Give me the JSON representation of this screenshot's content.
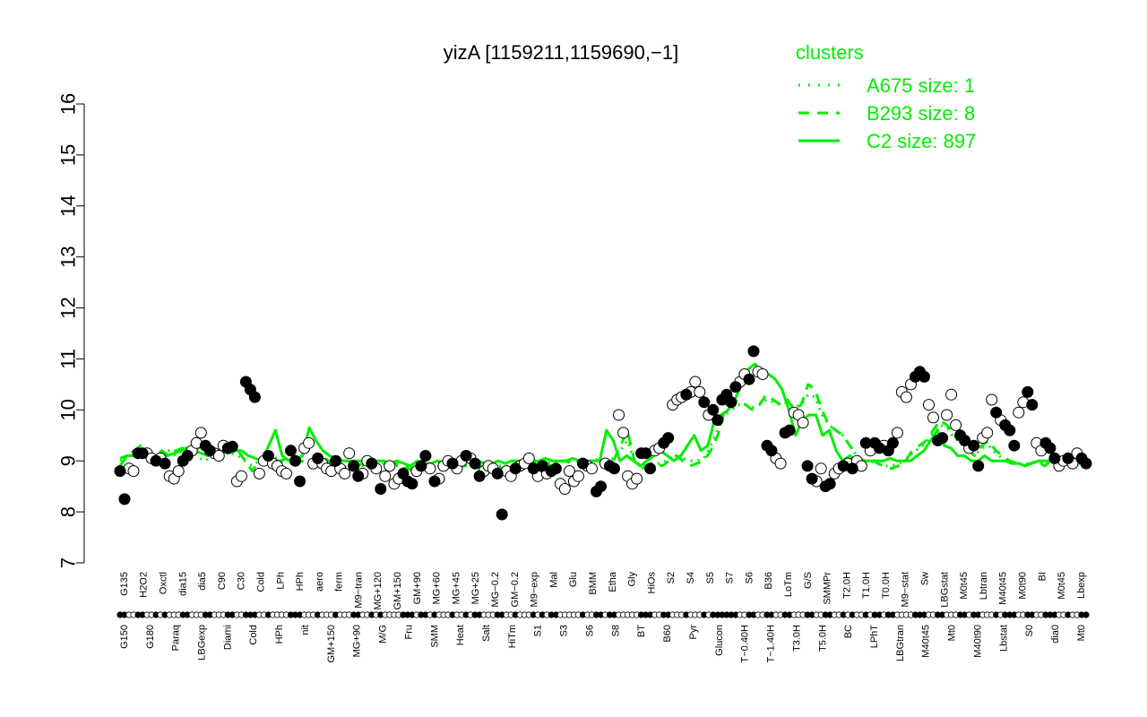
{
  "chart_data": {
    "type": "line",
    "title": "yizA [1159211,1159690,−1]",
    "xlabel": "",
    "ylabel": "",
    "ylim": [
      7,
      16
    ],
    "yticks": [
      7,
      8,
      9,
      10,
      11,
      12,
      13,
      14,
      15,
      16
    ],
    "grid": false,
    "legend": {
      "title": "clusters",
      "placement": "top-right",
      "color": "#00ee00",
      "entries": [
        {
          "label": "A675 size: 1",
          "style": "dotted"
        },
        {
          "label": "B293 size: 8",
          "style": "dashed"
        },
        {
          "label": "C2 size: 897",
          "style": "solid"
        }
      ]
    },
    "x_labels_top": [
      "G135",
      "H2O2",
      "Oxctl",
      "dia15",
      "dia5",
      "C90",
      "C30",
      "Cold",
      "LPh",
      "HPh",
      "aero",
      "ferm",
      "M9−tran",
      "MG+120",
      "GM+150",
      "GM+90",
      "MG+60",
      "MG+45",
      "MG+25",
      "MG−0.2",
      "GM−0.2",
      "M9−exp",
      "Mal",
      "Glu",
      "BMM",
      "Etha",
      "Gly",
      "HiOs",
      "S2",
      "S4",
      "S5",
      "S7",
      "S6",
      "B36",
      "LoTm",
      "G/S",
      "SMMPr",
      "T2.0H",
      "T1.0H",
      "T0.0H",
      "M9−stat",
      "Sw",
      "LBGstat",
      "M0t45",
      "Lbtran",
      "M40t45",
      "M0t90",
      "BI",
      "M0t45",
      "Lbexp"
    ],
    "x_labels_bottom": [
      "G150",
      "G180",
      "Paraq",
      "LBGexp",
      "Diami",
      "Cold",
      "HPh",
      "nit",
      "GM+150",
      "MG+90",
      "M/G",
      "Fru",
      "SMM",
      "Heat",
      "Salt",
      "HiTm",
      "S1",
      "S3",
      "S6",
      "S8",
      "BT",
      "B60",
      "Pyr",
      "Glucon",
      "T−0.40H",
      "T−1.40H",
      "T3.0H",
      "T5.0H",
      "BC",
      "LPhT",
      "LBGtran",
      "M40t45",
      "Mt0",
      "M40t90",
      "Lbstat",
      "S0",
      "dia0",
      "Mt0"
    ],
    "series": [
      {
        "style": "solid",
        "color": "#00ee00",
        "values": [
          9.05,
          9.1,
          9.1,
          9.15,
          9.15,
          9.1,
          9.05,
          9.1,
          9.15,
          9.2,
          9.25,
          9.2,
          9.15,
          9.1,
          9.15,
          9.2,
          9.15,
          9.2,
          9.2,
          9.1,
          9.05,
          9.0,
          9.3,
          9.6,
          9.1,
          9.0,
          9.0,
          9.1,
          9.65,
          9.4,
          9.2,
          9.1,
          9.05,
          9.0,
          9.0,
          9.0,
          9.0,
          8.95,
          9.0,
          9.0,
          8.95,
          9.0,
          8.95,
          8.9,
          9.0,
          8.95,
          8.95,
          9.0,
          8.95,
          8.95,
          8.95,
          9.0,
          8.95,
          9.0,
          8.95,
          8.95,
          9.0,
          8.95,
          9.0,
          9.0,
          9.0,
          9.0,
          9.0,
          9.05,
          9.0,
          9.0,
          9.0,
          9.05,
          9.0,
          9.0,
          9.0,
          9.0,
          9.6,
          9.4,
          9.0,
          9.1,
          9.0,
          8.9,
          9.0,
          9.1,
          9.2,
          9.1,
          9.0,
          9.1,
          9.3,
          9.5,
          9.2,
          9.3,
          9.8,
          9.9,
          10.0,
          10.2,
          10.5,
          10.8,
          10.9,
          10.7,
          10.7,
          10.6,
          10.4,
          10.0,
          9.5,
          9.8,
          9.9,
          9.9,
          9.5,
          9.6,
          9.2,
          9.0,
          9.1,
          9.0,
          9.0,
          9.0,
          9.0,
          9.0,
          9.05,
          9.0,
          9.0,
          9.0,
          9.1,
          9.2,
          9.4,
          9.6,
          9.3,
          9.25,
          9.1,
          9.1,
          9.0,
          9.0,
          9.1,
          9.0,
          9.0,
          9.0,
          8.95,
          8.95,
          8.9,
          8.95,
          9.0,
          9.0,
          9.0,
          9.0,
          9.0,
          8.95,
          8.95,
          8.95
        ]
      },
      {
        "style": "dashed",
        "color": "#00ee00",
        "values": [
          8.9,
          9.1,
          9.2,
          9.3,
          9.1,
          9.05,
          9.2,
          9.1,
          9.2,
          9.25,
          9.2,
          9.3,
          9.15,
          9.1,
          9.15,
          9.2,
          9.3,
          9.2,
          9.0,
          8.8,
          9.0,
          9.1,
          9.0,
          9.0,
          9.05,
          9.1,
          9.0,
          9.0,
          8.95,
          9.1,
          9.0,
          8.8,
          8.9,
          8.85,
          8.9,
          8.95,
          8.85,
          8.9,
          8.95,
          8.9,
          8.95,
          8.9,
          8.8,
          8.85,
          8.9,
          8.85,
          8.9,
          8.95,
          8.85,
          8.9,
          8.9,
          8.85,
          8.9,
          8.85,
          8.8,
          8.9,
          8.85,
          8.9,
          8.95,
          9.0,
          8.95,
          9.0,
          8.9,
          9.0,
          9.0,
          8.95,
          8.95,
          9.0,
          9.05,
          9.0,
          9.0,
          9.0,
          9.3,
          9.6,
          9.0,
          8.85,
          8.9,
          8.95,
          8.9,
          9.0,
          9.1,
          9.0,
          8.9,
          8.95,
          9.0,
          9.2,
          9.5,
          10.0,
          10.1,
          10.2,
          10.1,
          10.0,
          10.1,
          10.3,
          10.2,
          10.1,
          10.2,
          10.0,
          10.1,
          10.5,
          10.4,
          10.0,
          9.7,
          9.6,
          9.5,
          9.3,
          9.1,
          9.0,
          9.05,
          8.95,
          8.9,
          8.85,
          8.9,
          9.0,
          9.2,
          9.3,
          9.4,
          9.6,
          9.8,
          9.7,
          9.5,
          9.4,
          9.2,
          9.1,
          9.3,
          9.4,
          9.2,
          9.1,
          9.0,
          8.95,
          8.9,
          8.95,
          9.0,
          8.9,
          9.0,
          9.0,
          8.95,
          9.0,
          9.0,
          9.0
        ]
      },
      {
        "style": "dotted",
        "color": "#00ee00",
        "values": [
          9.0,
          9.1,
          9.2,
          9.15,
          9.1,
          9.0,
          9.1,
          9.2,
          9.1,
          9.2,
          9.3,
          9.1,
          9.0,
          9.05,
          9.1,
          9.2,
          9.15,
          9.1,
          9.0,
          8.9,
          9.0,
          9.05,
          9.1,
          9.0,
          9.0,
          9.05,
          9.0,
          8.95,
          9.0,
          9.05,
          8.95,
          8.9,
          8.9,
          8.9,
          8.95,
          8.9,
          8.85,
          8.9,
          8.95,
          8.9,
          8.9,
          8.85,
          8.85,
          8.9,
          8.9,
          8.85,
          8.9,
          8.95,
          8.9,
          8.9,
          8.95,
          8.9,
          8.9,
          8.85,
          8.9,
          8.9,
          8.9,
          8.95,
          8.95,
          9.0,
          9.0,
          9.0,
          8.95,
          8.95,
          9.0,
          9.0,
          9.0,
          9.0,
          9.0,
          9.0,
          9.0,
          9.05,
          9.2,
          9.4,
          9.0,
          8.9,
          8.95,
          8.95,
          8.95,
          9.05,
          9.1,
          9.05,
          9.0,
          9.0,
          9.05,
          9.3,
          9.6,
          9.9,
          10.0,
          10.1,
          10.1,
          10.05,
          10.1,
          10.2,
          10.15,
          10.1,
          10.15,
          10.05,
          10.1,
          10.3,
          10.25,
          9.9,
          9.7,
          9.6,
          9.5,
          9.3,
          9.1,
          9.0,
          9.0,
          8.95,
          8.9,
          8.9,
          8.95,
          9.0,
          9.15,
          9.25,
          9.35,
          9.55,
          9.7,
          9.65,
          9.45,
          9.35,
          9.2,
          9.1,
          9.25,
          9.3,
          9.15,
          9.05,
          9.0,
          8.95,
          8.95,
          8.95,
          9.0,
          8.95,
          9.0,
          9.0,
          8.95,
          9.0,
          9.0,
          8.95
        ]
      }
    ],
    "points": [
      {
        "y": 8.8,
        "f": 1
      },
      {
        "y": 8.25,
        "f": 1
      },
      {
        "y": 8.85,
        "f": 0
      },
      {
        "y": 8.8,
        "f": 0
      },
      {
        "y": 9.15,
        "f": 1
      },
      {
        "y": 9.15,
        "f": 1
      },
      {
        "y": 9.15,
        "f": 0
      },
      {
        "y": 9.05,
        "f": 0
      },
      {
        "y": 9.0,
        "f": 1
      },
      {
        "y": 9.05,
        "f": 0
      },
      {
        "y": 8.95,
        "f": 1
      },
      {
        "y": 8.7,
        "f": 0
      },
      {
        "y": 8.65,
        "f": 0
      },
      {
        "y": 8.8,
        "f": 0
      },
      {
        "y": 9.0,
        "f": 1
      },
      {
        "y": 9.1,
        "f": 1
      },
      {
        "y": 9.2,
        "f": 0
      },
      {
        "y": 9.35,
        "f": 0
      },
      {
        "y": 9.55,
        "f": 0
      },
      {
        "y": 9.3,
        "f": 1
      },
      {
        "y": 9.2,
        "f": 1
      },
      {
        "y": 9.15,
        "f": 0
      },
      {
        "y": 9.1,
        "f": 0
      },
      {
        "y": 9.3,
        "f": 0
      },
      {
        "y": 9.25,
        "f": 1
      },
      {
        "y": 9.28,
        "f": 1
      },
      {
        "y": 8.6,
        "f": 0
      },
      {
        "y": 8.7,
        "f": 0
      },
      {
        "y": 10.55,
        "f": 1
      },
      {
        "y": 10.4,
        "f": 1
      },
      {
        "y": 10.25,
        "f": 1
      },
      {
        "y": 8.75,
        "f": 0
      },
      {
        "y": 9.0,
        "f": 0
      },
      {
        "y": 9.1,
        "f": 1
      },
      {
        "y": 8.95,
        "f": 0
      },
      {
        "y": 8.9,
        "f": 0
      },
      {
        "y": 8.8,
        "f": 0
      },
      {
        "y": 8.75,
        "f": 0
      },
      {
        "y": 9.2,
        "f": 1
      },
      {
        "y": 9.0,
        "f": 1
      },
      {
        "y": 8.6,
        "f": 1
      },
      {
        "y": 9.25,
        "f": 0
      },
      {
        "y": 9.35,
        "f": 0
      },
      {
        "y": 8.95,
        "f": 0
      },
      {
        "y": 9.05,
        "f": 1
      },
      {
        "y": 8.95,
        "f": 0
      },
      {
        "y": 8.85,
        "f": 0
      },
      {
        "y": 8.8,
        "f": 0
      },
      {
        "y": 9.0,
        "f": 1
      },
      {
        "y": 8.85,
        "f": 0
      },
      {
        "y": 8.75,
        "f": 0
      },
      {
        "y": 9.15,
        "f": 0
      },
      {
        "y": 8.9,
        "f": 1
      },
      {
        "y": 8.7,
        "f": 1
      },
      {
        "y": 8.75,
        "f": 0
      },
      {
        "y": 9.0,
        "f": 0
      },
      {
        "y": 8.95,
        "f": 1
      },
      {
        "y": 8.85,
        "f": 0
      },
      {
        "y": 8.45,
        "f": 1
      },
      {
        "y": 8.7,
        "f": 0
      },
      {
        "y": 8.9,
        "f": 0
      },
      {
        "y": 8.55,
        "f": 0
      },
      {
        "y": 8.65,
        "f": 0
      },
      {
        "y": 8.75,
        "f": 1
      },
      {
        "y": 8.6,
        "f": 1
      },
      {
        "y": 8.55,
        "f": 1
      },
      {
        "y": 8.8,
        "f": 0
      },
      {
        "y": 8.9,
        "f": 1
      },
      {
        "y": 9.1,
        "f": 1
      },
      {
        "y": 8.85,
        "f": 0
      },
      {
        "y": 8.6,
        "f": 1
      },
      {
        "y": 8.65,
        "f": 0
      },
      {
        "y": 8.9,
        "f": 0
      },
      {
        "y": 9.0,
        "f": 0
      },
      {
        "y": 8.95,
        "f": 1
      },
      {
        "y": 8.85,
        "f": 0
      },
      {
        "y": 9.0,
        "f": 0
      },
      {
        "y": 9.1,
        "f": 1
      },
      {
        "y": 9.05,
        "f": 0
      },
      {
        "y": 8.95,
        "f": 1
      },
      {
        "y": 8.7,
        "f": 1
      },
      {
        "y": 8.8,
        "f": 0
      },
      {
        "y": 8.9,
        "f": 0
      },
      {
        "y": 8.85,
        "f": 0
      },
      {
        "y": 8.75,
        "f": 1
      },
      {
        "y": 7.95,
        "f": 1
      },
      {
        "y": 8.8,
        "f": 0
      },
      {
        "y": 8.7,
        "f": 0
      },
      {
        "y": 8.85,
        "f": 1
      },
      {
        "y": 8.9,
        "f": 0
      },
      {
        "y": 8.95,
        "f": 0
      },
      {
        "y": 9.05,
        "f": 0
      },
      {
        "y": 8.85,
        "f": 1
      },
      {
        "y": 8.7,
        "f": 0
      },
      {
        "y": 8.9,
        "f": 1
      },
      {
        "y": 8.75,
        "f": 0
      },
      {
        "y": 8.8,
        "f": 1
      },
      {
        "y": 8.85,
        "f": 1
      },
      {
        "y": 8.55,
        "f": 0
      },
      {
        "y": 8.45,
        "f": 0
      },
      {
        "y": 8.8,
        "f": 0
      },
      {
        "y": 8.6,
        "f": 0
      },
      {
        "y": 8.7,
        "f": 0
      },
      {
        "y": 8.95,
        "f": 1
      },
      {
        "y": 8.9,
        "f": 0
      },
      {
        "y": 8.85,
        "f": 0
      },
      {
        "y": 8.4,
        "f": 1
      },
      {
        "y": 8.5,
        "f": 1
      },
      {
        "y": 8.95,
        "f": 0
      },
      {
        "y": 8.9,
        "f": 1
      },
      {
        "y": 8.85,
        "f": 1
      },
      {
        "y": 9.9,
        "f": 0
      },
      {
        "y": 9.55,
        "f": 0
      },
      {
        "y": 8.7,
        "f": 0
      },
      {
        "y": 8.55,
        "f": 0
      },
      {
        "y": 8.65,
        "f": 0
      },
      {
        "y": 9.15,
        "f": 1
      },
      {
        "y": 9.15,
        "f": 1
      },
      {
        "y": 8.85,
        "f": 1
      },
      {
        "y": 9.2,
        "f": 0
      },
      {
        "y": 9.25,
        "f": 0
      },
      {
        "y": 9.35,
        "f": 1
      },
      {
        "y": 9.45,
        "f": 1
      },
      {
        "y": 10.1,
        "f": 0
      },
      {
        "y": 10.2,
        "f": 0
      },
      {
        "y": 10.25,
        "f": 0
      },
      {
        "y": 10.3,
        "f": 1
      },
      {
        "y": 10.35,
        "f": 0
      },
      {
        "y": 10.55,
        "f": 0
      },
      {
        "y": 10.35,
        "f": 0
      },
      {
        "y": 10.15,
        "f": 1
      },
      {
        "y": 9.9,
        "f": 0
      },
      {
        "y": 10.0,
        "f": 1
      },
      {
        "y": 9.8,
        "f": 1
      },
      {
        "y": 10.2,
        "f": 1
      },
      {
        "y": 10.3,
        "f": 1
      },
      {
        "y": 10.15,
        "f": 1
      },
      {
        "y": 10.45,
        "f": 1
      },
      {
        "y": 10.55,
        "f": 0
      },
      {
        "y": 10.7,
        "f": 0
      },
      {
        "y": 10.6,
        "f": 1
      },
      {
        "y": 11.15,
        "f": 1
      },
      {
        "y": 10.75,
        "f": 0
      },
      {
        "y": 10.7,
        "f": 0
      },
      {
        "y": 9.3,
        "f": 1
      },
      {
        "y": 9.2,
        "f": 1
      },
      {
        "y": 9.05,
        "f": 0
      },
      {
        "y": 8.95,
        "f": 0
      },
      {
        "y": 9.55,
        "f": 1
      },
      {
        "y": 9.6,
        "f": 1
      },
      {
        "y": 9.95,
        "f": 0
      },
      {
        "y": 9.9,
        "f": 0
      },
      {
        "y": 9.75,
        "f": 0
      },
      {
        "y": 8.9,
        "f": 1
      },
      {
        "y": 8.65,
        "f": 1
      },
      {
        "y": 8.6,
        "f": 0
      },
      {
        "y": 8.85,
        "f": 0
      },
      {
        "y": 8.5,
        "f": 1
      },
      {
        "y": 8.55,
        "f": 1
      },
      {
        "y": 8.75,
        "f": 0
      },
      {
        "y": 8.85,
        "f": 0
      },
      {
        "y": 8.9,
        "f": 1
      },
      {
        "y": 8.95,
        "f": 0
      },
      {
        "y": 8.85,
        "f": 1
      },
      {
        "y": 9.0,
        "f": 0
      },
      {
        "y": 8.9,
        "f": 0
      },
      {
        "y": 9.35,
        "f": 1
      },
      {
        "y": 9.2,
        "f": 0
      },
      {
        "y": 9.35,
        "f": 1
      },
      {
        "y": 9.25,
        "f": 1
      },
      {
        "y": 9.3,
        "f": 0
      },
      {
        "y": 9.2,
        "f": 1
      },
      {
        "y": 9.35,
        "f": 1
      },
      {
        "y": 9.55,
        "f": 0
      },
      {
        "y": 10.35,
        "f": 0
      },
      {
        "y": 10.25,
        "f": 0
      },
      {
        "y": 10.5,
        "f": 0
      },
      {
        "y": 10.65,
        "f": 1
      },
      {
        "y": 10.75,
        "f": 1
      },
      {
        "y": 10.65,
        "f": 1
      },
      {
        "y": 10.1,
        "f": 0
      },
      {
        "y": 9.85,
        "f": 0
      },
      {
        "y": 9.4,
        "f": 1
      },
      {
        "y": 9.45,
        "f": 1
      },
      {
        "y": 9.9,
        "f": 0
      },
      {
        "y": 10.3,
        "f": 0
      },
      {
        "y": 9.7,
        "f": 0
      },
      {
        "y": 9.5,
        "f": 1
      },
      {
        "y": 9.4,
        "f": 1
      },
      {
        "y": 9.25,
        "f": 0
      },
      {
        "y": 9.3,
        "f": 1
      },
      {
        "y": 8.9,
        "f": 1
      },
      {
        "y": 9.45,
        "f": 0
      },
      {
        "y": 9.55,
        "f": 0
      },
      {
        "y": 10.2,
        "f": 0
      },
      {
        "y": 9.95,
        "f": 1
      },
      {
        "y": 9.8,
        "f": 0
      },
      {
        "y": 9.7,
        "f": 1
      },
      {
        "y": 9.6,
        "f": 1
      },
      {
        "y": 9.3,
        "f": 1
      },
      {
        "y": 9.95,
        "f": 0
      },
      {
        "y": 10.15,
        "f": 0
      },
      {
        "y": 10.35,
        "f": 1
      },
      {
        "y": 10.1,
        "f": 1
      },
      {
        "y": 9.35,
        "f": 0
      },
      {
        "y": 9.2,
        "f": 0
      },
      {
        "y": 9.35,
        "f": 1
      },
      {
        "y": 9.25,
        "f": 1
      },
      {
        "y": 9.05,
        "f": 1
      },
      {
        "y": 8.9,
        "f": 0
      },
      {
        "y": 9.0,
        "f": 0
      },
      {
        "y": 9.05,
        "f": 1
      },
      {
        "y": 8.95,
        "f": 0
      },
      {
        "y": 9.15,
        "f": 0
      },
      {
        "y": 9.05,
        "f": 1
      },
      {
        "y": 8.95,
        "f": 1
      }
    ]
  }
}
